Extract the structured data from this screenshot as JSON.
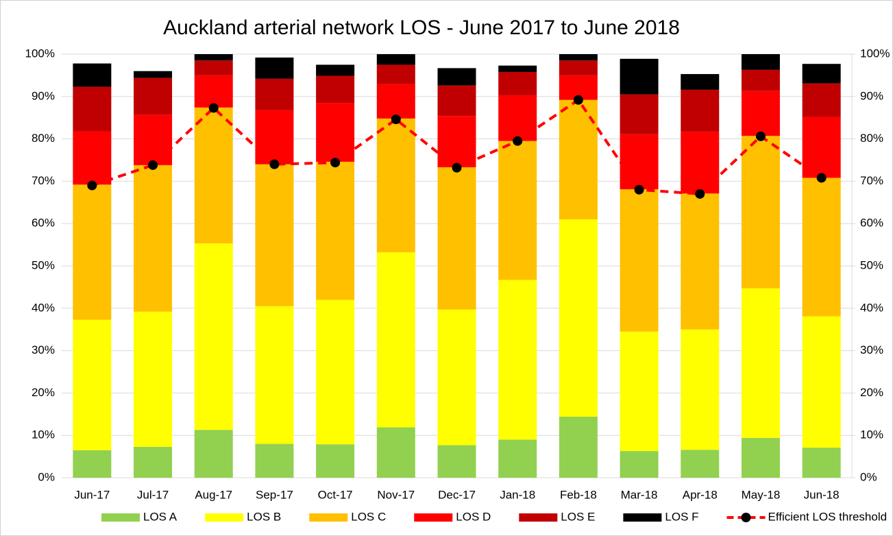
{
  "chart_data": {
    "type": "bar",
    "stacked": true,
    "title": "Auckland arterial network LOS - June 2017 to June 2018",
    "categories": [
      "Jun-17",
      "Jul-17",
      "Aug-17",
      "Sep-17",
      "Oct-17",
      "Nov-17",
      "Dec-17",
      "Jan-18",
      "Feb-18",
      "Mar-18",
      "Apr-18",
      "May-18",
      "Jun-18"
    ],
    "series": [
      {
        "name": "LOS A",
        "color": "#92d050",
        "values": [
          6.5,
          7.3,
          11.3,
          8,
          7.9,
          11.9,
          7.7,
          9,
          14.4,
          6.3,
          6.6,
          9.4,
          7.1
        ]
      },
      {
        "name": "LOS B",
        "color": "#ffff00",
        "values": [
          30.8,
          31.9,
          44,
          32.5,
          34.1,
          41.3,
          32,
          37.7,
          46.6,
          28.2,
          28.4,
          35.3,
          31
        ]
      },
      {
        "name": "LOS C",
        "color": "#ffc000",
        "values": [
          31.9,
          34.6,
          32.1,
          33.5,
          32.6,
          31.6,
          33.6,
          32.8,
          28.2,
          33.6,
          32.1,
          36,
          32.7
        ]
      },
      {
        "name": "LOS D",
        "color": "#ff0000",
        "values": [
          12.6,
          11.9,
          7.6,
          12.8,
          13.9,
          8.1,
          12.1,
          10.8,
          5.8,
          13,
          14.6,
          10.6,
          14.4
        ]
      },
      {
        "name": "LOS E",
        "color": "#c00000",
        "values": [
          10.5,
          8.7,
          3.5,
          7.4,
          6.4,
          4.6,
          7.2,
          5.5,
          3.5,
          9.4,
          9.9,
          5,
          7.9
        ]
      },
      {
        "name": "LOS F",
        "color": "#000000",
        "values": [
          5.5,
          1.6,
          1.5,
          5,
          2.6,
          2.5,
          4.1,
          1.5,
          1.5,
          8.4,
          3.7,
          3.7,
          4.6
        ]
      },
      {
        "name": "Efficient LOS threshold",
        "type": "line",
        "axis": "y2",
        "color": "#ff0000",
        "marker_color": "#000000",
        "values": [
          69,
          73.8,
          87.3,
          74,
          74.4,
          84.6,
          73.2,
          79.5,
          89.2,
          68,
          67,
          80.6,
          70.8
        ]
      }
    ],
    "ylim": [
      0,
      100
    ],
    "yticks": [
      {
        "value": 0,
        "label": "0%"
      },
      {
        "value": 10,
        "label": "10%"
      },
      {
        "value": 20,
        "label": "20%"
      },
      {
        "value": 30,
        "label": "30%"
      },
      {
        "value": 40,
        "label": "40%"
      },
      {
        "value": 50,
        "label": "50%"
      },
      {
        "value": 60,
        "label": "60%"
      },
      {
        "value": 70,
        "label": "70%"
      },
      {
        "value": 80,
        "label": "80%"
      },
      {
        "value": 90,
        "label": "90%"
      },
      {
        "value": 100,
        "label": "100%"
      }
    ],
    "y2lim": [
      0,
      100
    ],
    "y2ticks": [
      {
        "value": 0,
        "label": "0%"
      },
      {
        "value": 10,
        "label": "10%"
      },
      {
        "value": 20,
        "label": "20%"
      },
      {
        "value": 30,
        "label": "30%"
      },
      {
        "value": 40,
        "label": "40%"
      },
      {
        "value": 50,
        "label": "50%"
      },
      {
        "value": 60,
        "label": "60%"
      },
      {
        "value": 70,
        "label": "70%"
      },
      {
        "value": 80,
        "label": "80%"
      },
      {
        "value": 90,
        "label": "90%"
      },
      {
        "value": 100,
        "label": "100%"
      }
    ],
    "grid": true,
    "legend": "bottom"
  }
}
